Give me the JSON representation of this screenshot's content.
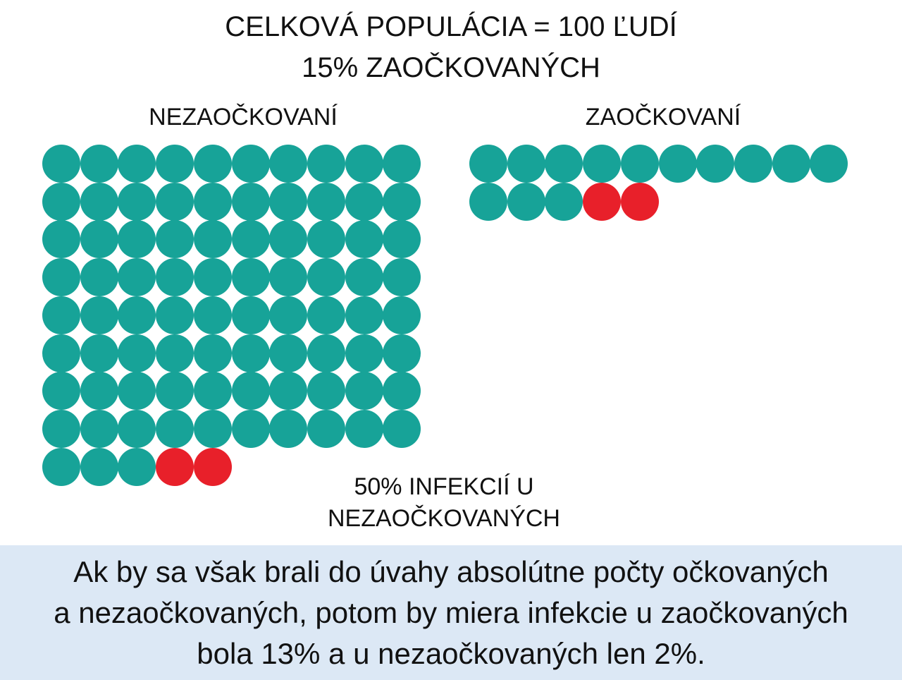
{
  "title": {
    "line1": "CELKOVÁ POPULÁCIA = 100 ĽUDÍ",
    "line2": "15% ZAOČKOVANÝCH"
  },
  "groups": {
    "unvaccinated": {
      "label": "NEZAOČKOVANÍ",
      "total": 85,
      "infected": 2,
      "per_row": 10
    },
    "vaccinated": {
      "label": "ZAOČKOVANÍ",
      "total": 15,
      "infected": 2,
      "per_row": 10
    }
  },
  "note": {
    "line1": "50% INFEKCIÍ U",
    "line2": "NEZAOČKOVANÝCH"
  },
  "footer": {
    "line1": "Ak by sa však brali do úvahy absolútne počty očkovaných",
    "line2": "a nezaočkovaných, potom by miera infekcie u zaočkovaných",
    "line3": "bola 13% a u nezaočkovaných len 2%."
  },
  "colors": {
    "healthy": "#17a398",
    "infected": "#e8202a",
    "band": "#dce8f5"
  }
}
